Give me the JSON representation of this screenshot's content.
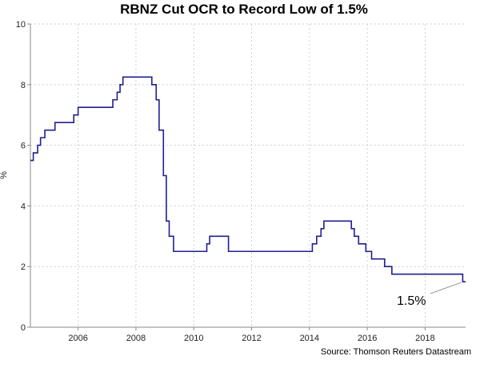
{
  "chart_data": {
    "type": "line",
    "title": "RBNZ Cut OCR to Record Low of 1.5%",
    "ylabel": "%",
    "xlabel": "",
    "source": "Source: Thomson Reuters Datastream",
    "xlim": [
      2004.35,
      2019.4
    ],
    "ylim": [
      0,
      10
    ],
    "y_ticks": [
      0,
      2,
      4,
      6,
      8,
      10
    ],
    "x_ticks": [
      2006,
      2008,
      2010,
      2012,
      2014,
      2016,
      2018
    ],
    "grid": true,
    "line_color": "#1f1f8f",
    "annotation": {
      "text": "1.5%",
      "x": 2019.3,
      "y": 1.5
    },
    "series": [
      {
        "points": [
          [
            2004.35,
            5.5
          ],
          [
            2004.45,
            5.75
          ],
          [
            2004.6,
            6.0
          ],
          [
            2004.7,
            6.25
          ],
          [
            2004.85,
            6.5
          ],
          [
            2005.2,
            6.75
          ],
          [
            2005.85,
            7.0
          ],
          [
            2006.0,
            7.25
          ],
          [
            2007.2,
            7.5
          ],
          [
            2007.35,
            7.75
          ],
          [
            2007.45,
            8.0
          ],
          [
            2007.55,
            8.25
          ],
          [
            2008.55,
            8.0
          ],
          [
            2008.7,
            7.5
          ],
          [
            2008.8,
            6.5
          ],
          [
            2008.95,
            5.0
          ],
          [
            2009.05,
            3.5
          ],
          [
            2009.15,
            3.0
          ],
          [
            2009.3,
            2.5
          ],
          [
            2010.45,
            2.75
          ],
          [
            2010.55,
            3.0
          ],
          [
            2011.2,
            2.5
          ],
          [
            2014.1,
            2.75
          ],
          [
            2014.25,
            3.0
          ],
          [
            2014.4,
            3.25
          ],
          [
            2014.5,
            3.5
          ],
          [
            2015.45,
            3.25
          ],
          [
            2015.55,
            3.0
          ],
          [
            2015.7,
            2.75
          ],
          [
            2015.95,
            2.5
          ],
          [
            2016.15,
            2.25
          ],
          [
            2016.6,
            2.0
          ],
          [
            2016.85,
            1.75
          ],
          [
            2019.3,
            1.5
          ],
          [
            2019.4,
            1.5
          ]
        ]
      }
    ]
  }
}
